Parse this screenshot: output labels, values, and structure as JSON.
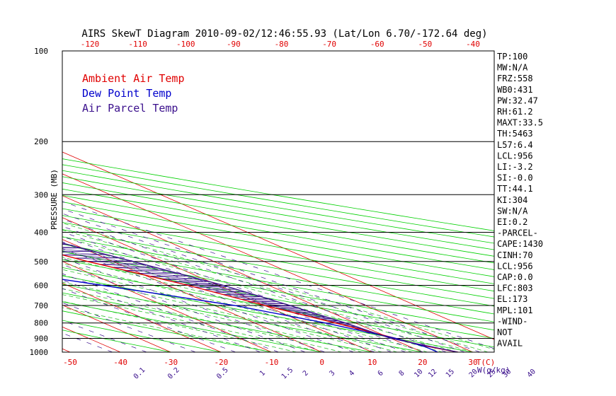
{
  "chart_data": {
    "type": "skewt",
    "title": "AIRS SkewT Diagram 2010-09-02/12:46:55.93 (Lat/Lon 6.70/-172.64 deg)",
    "ylabel": "PRESSURE (MB)",
    "x_unit_label": "T(C)",
    "mixing_unit_label": "W(g/kg)",
    "pressure_ticks": [
      100,
      200,
      300,
      400,
      500,
      600,
      700,
      800,
      900,
      1000
    ],
    "top_temp_ticks": [
      -120,
      -110,
      -100,
      -90,
      -80,
      -70,
      -60,
      -50,
      -40
    ],
    "bottom_temp_ticks": [
      -50,
      -40,
      -30,
      -20,
      -10,
      0,
      10,
      20,
      30
    ],
    "mixing_ratio_labels": [
      {
        "label": "0.1",
        "w": 0.1
      },
      {
        "label": "0.2",
        "w": 0.2
      },
      {
        "label": "0.5",
        "w": 0.5
      },
      {
        "label": "1",
        "w": 1
      },
      {
        "label": "1.5",
        "w": 1.5
      },
      {
        "label": "2",
        "w": 2
      },
      {
        "label": "3",
        "w": 3
      },
      {
        "label": "4",
        "w": 4
      },
      {
        "label": "6",
        "w": 6
      },
      {
        "label": "8",
        "w": 8
      },
      {
        "label": "10",
        "w": 10
      },
      {
        "label": "12",
        "w": 12
      },
      {
        "label": "15",
        "w": 15
      },
      {
        "label": "20",
        "w": 20
      },
      {
        "label": "25",
        "w": 25
      },
      {
        "label": "30",
        "w": 30
      },
      {
        "label": "40",
        "w": 40
      }
    ],
    "legend": [
      {
        "label": "Ambient Air Temp",
        "color": "#e00000"
      },
      {
        "label": "Dew Point Temp",
        "color": "#0000cc"
      },
      {
        "label": "Air Parcel Temp",
        "color": "#3a0f8c"
      }
    ],
    "series": [
      {
        "name": "Ambient Air Temp",
        "color": "#e00000",
        "points": [
          [
            100,
            -80
          ],
          [
            150,
            -75
          ],
          [
            170,
            -70
          ],
          [
            200,
            -61
          ],
          [
            250,
            -45
          ],
          [
            300,
            -33
          ],
          [
            400,
            -14
          ],
          [
            500,
            -5
          ],
          [
            600,
            4
          ],
          [
            700,
            10
          ],
          [
            800,
            16
          ],
          [
            900,
            21
          ],
          [
            950,
            23
          ],
          [
            1000,
            27
          ]
        ]
      },
      {
        "name": "Dew Point Temp",
        "color": "#0000cc",
        "points": [
          [
            100,
            -90
          ],
          [
            150,
            -90
          ],
          [
            200,
            -100
          ],
          [
            250,
            -95
          ],
          [
            300,
            -82
          ],
          [
            400,
            -53
          ],
          [
            500,
            -34
          ],
          [
            600,
            -13
          ],
          [
            700,
            4
          ],
          [
            800,
            14
          ],
          [
            900,
            21
          ],
          [
            960,
            23
          ],
          [
            1000,
            23
          ]
        ]
      },
      {
        "name": "Air Parcel Temp",
        "color": "#3a0f8c",
        "points": [
          [
            100,
            -93
          ],
          [
            150,
            -78
          ],
          [
            170,
            -70
          ],
          [
            200,
            -57
          ],
          [
            250,
            -37
          ],
          [
            300,
            -23
          ],
          [
            400,
            -5
          ],
          [
            500,
            4
          ],
          [
            600,
            11
          ],
          [
            700,
            15
          ],
          [
            800,
            18
          ],
          [
            900,
            20
          ],
          [
            1000,
            27
          ]
        ]
      }
    ],
    "isotherm_range": [
      -150,
      40
    ],
    "dry_adiabat_thetas_c": [
      -30,
      -20,
      -10,
      0,
      10,
      20,
      30,
      40,
      50,
      60,
      70,
      80,
      90,
      100,
      110,
      120,
      130,
      140,
      150,
      160,
      170,
      180,
      190,
      200
    ],
    "moist_adiabat_start_c": [
      -10,
      -5,
      0,
      4,
      8,
      12,
      15,
      18,
      21,
      24,
      27,
      30,
      33,
      36
    ],
    "stats": [
      "TP:100",
      "MW:N/A",
      "FRZ:558",
      "WB0:431",
      "PW:32.47",
      "RH:61.2",
      "MAXT:33.5",
      "TH:5463",
      "L57:6.4",
      "LCL:956",
      "LI:-3.2",
      "SI:-0.0",
      "TT:44.1",
      "KI:304",
      "SW:N/A",
      "EI:0.2",
      "-PARCEL-",
      "CAPE:1430",
      "CINH:70",
      "LCL:956",
      "CAP:0.0",
      "LFC:803",
      "EL:173",
      "MPL:101",
      "-WIND-",
      "NOT",
      "AVAIL"
    ]
  }
}
